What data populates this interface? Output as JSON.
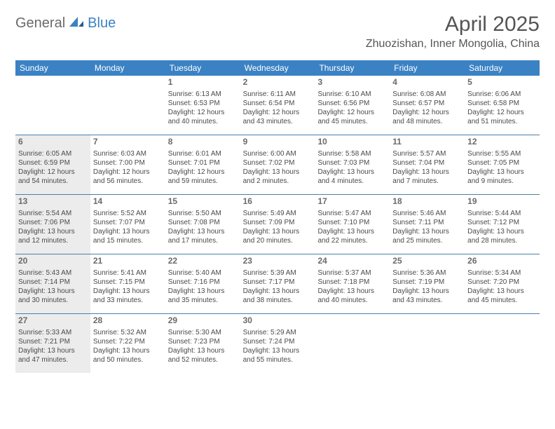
{
  "logo": {
    "general": "General",
    "blue": "Blue"
  },
  "header": {
    "month_title": "April 2025",
    "location": "Zhuozishan, Inner Mongolia, China"
  },
  "colors": {
    "header_bg": "#3b82c4",
    "row_divider": "#4a7fa8",
    "shaded_bg": "#ececec",
    "text": "#4a4a4a",
    "title_text": "#555555",
    "logo_gray": "#6a6a6a",
    "logo_blue": "#3b82c4"
  },
  "weekdays": [
    "Sunday",
    "Monday",
    "Tuesday",
    "Wednesday",
    "Thursday",
    "Friday",
    "Saturday"
  ],
  "weeks": [
    [
      {
        "blank": true,
        "shaded": false
      },
      {
        "blank": true,
        "shaded": false
      },
      {
        "day": "1",
        "shaded": false,
        "sunrise": "Sunrise: 6:13 AM",
        "sunset": "Sunset: 6:53 PM",
        "daylight1": "Daylight: 12 hours",
        "daylight2": "and 40 minutes."
      },
      {
        "day": "2",
        "shaded": false,
        "sunrise": "Sunrise: 6:11 AM",
        "sunset": "Sunset: 6:54 PM",
        "daylight1": "Daylight: 12 hours",
        "daylight2": "and 43 minutes."
      },
      {
        "day": "3",
        "shaded": false,
        "sunrise": "Sunrise: 6:10 AM",
        "sunset": "Sunset: 6:56 PM",
        "daylight1": "Daylight: 12 hours",
        "daylight2": "and 45 minutes."
      },
      {
        "day": "4",
        "shaded": false,
        "sunrise": "Sunrise: 6:08 AM",
        "sunset": "Sunset: 6:57 PM",
        "daylight1": "Daylight: 12 hours",
        "daylight2": "and 48 minutes."
      },
      {
        "day": "5",
        "shaded": false,
        "sunrise": "Sunrise: 6:06 AM",
        "sunset": "Sunset: 6:58 PM",
        "daylight1": "Daylight: 12 hours",
        "daylight2": "and 51 minutes."
      }
    ],
    [
      {
        "day": "6",
        "shaded": true,
        "sunrise": "Sunrise: 6:05 AM",
        "sunset": "Sunset: 6:59 PM",
        "daylight1": "Daylight: 12 hours",
        "daylight2": "and 54 minutes."
      },
      {
        "day": "7",
        "shaded": false,
        "sunrise": "Sunrise: 6:03 AM",
        "sunset": "Sunset: 7:00 PM",
        "daylight1": "Daylight: 12 hours",
        "daylight2": "and 56 minutes."
      },
      {
        "day": "8",
        "shaded": false,
        "sunrise": "Sunrise: 6:01 AM",
        "sunset": "Sunset: 7:01 PM",
        "daylight1": "Daylight: 12 hours",
        "daylight2": "and 59 minutes."
      },
      {
        "day": "9",
        "shaded": false,
        "sunrise": "Sunrise: 6:00 AM",
        "sunset": "Sunset: 7:02 PM",
        "daylight1": "Daylight: 13 hours",
        "daylight2": "and 2 minutes."
      },
      {
        "day": "10",
        "shaded": false,
        "sunrise": "Sunrise: 5:58 AM",
        "sunset": "Sunset: 7:03 PM",
        "daylight1": "Daylight: 13 hours",
        "daylight2": "and 4 minutes."
      },
      {
        "day": "11",
        "shaded": false,
        "sunrise": "Sunrise: 5:57 AM",
        "sunset": "Sunset: 7:04 PM",
        "daylight1": "Daylight: 13 hours",
        "daylight2": "and 7 minutes."
      },
      {
        "day": "12",
        "shaded": false,
        "sunrise": "Sunrise: 5:55 AM",
        "sunset": "Sunset: 7:05 PM",
        "daylight1": "Daylight: 13 hours",
        "daylight2": "and 9 minutes."
      }
    ],
    [
      {
        "day": "13",
        "shaded": true,
        "sunrise": "Sunrise: 5:54 AM",
        "sunset": "Sunset: 7:06 PM",
        "daylight1": "Daylight: 13 hours",
        "daylight2": "and 12 minutes."
      },
      {
        "day": "14",
        "shaded": false,
        "sunrise": "Sunrise: 5:52 AM",
        "sunset": "Sunset: 7:07 PM",
        "daylight1": "Daylight: 13 hours",
        "daylight2": "and 15 minutes."
      },
      {
        "day": "15",
        "shaded": false,
        "sunrise": "Sunrise: 5:50 AM",
        "sunset": "Sunset: 7:08 PM",
        "daylight1": "Daylight: 13 hours",
        "daylight2": "and 17 minutes."
      },
      {
        "day": "16",
        "shaded": false,
        "sunrise": "Sunrise: 5:49 AM",
        "sunset": "Sunset: 7:09 PM",
        "daylight1": "Daylight: 13 hours",
        "daylight2": "and 20 minutes."
      },
      {
        "day": "17",
        "shaded": false,
        "sunrise": "Sunrise: 5:47 AM",
        "sunset": "Sunset: 7:10 PM",
        "daylight1": "Daylight: 13 hours",
        "daylight2": "and 22 minutes."
      },
      {
        "day": "18",
        "shaded": false,
        "sunrise": "Sunrise: 5:46 AM",
        "sunset": "Sunset: 7:11 PM",
        "daylight1": "Daylight: 13 hours",
        "daylight2": "and 25 minutes."
      },
      {
        "day": "19",
        "shaded": false,
        "sunrise": "Sunrise: 5:44 AM",
        "sunset": "Sunset: 7:12 PM",
        "daylight1": "Daylight: 13 hours",
        "daylight2": "and 28 minutes."
      }
    ],
    [
      {
        "day": "20",
        "shaded": true,
        "sunrise": "Sunrise: 5:43 AM",
        "sunset": "Sunset: 7:14 PM",
        "daylight1": "Daylight: 13 hours",
        "daylight2": "and 30 minutes."
      },
      {
        "day": "21",
        "shaded": false,
        "sunrise": "Sunrise: 5:41 AM",
        "sunset": "Sunset: 7:15 PM",
        "daylight1": "Daylight: 13 hours",
        "daylight2": "and 33 minutes."
      },
      {
        "day": "22",
        "shaded": false,
        "sunrise": "Sunrise: 5:40 AM",
        "sunset": "Sunset: 7:16 PM",
        "daylight1": "Daylight: 13 hours",
        "daylight2": "and 35 minutes."
      },
      {
        "day": "23",
        "shaded": false,
        "sunrise": "Sunrise: 5:39 AM",
        "sunset": "Sunset: 7:17 PM",
        "daylight1": "Daylight: 13 hours",
        "daylight2": "and 38 minutes."
      },
      {
        "day": "24",
        "shaded": false,
        "sunrise": "Sunrise: 5:37 AM",
        "sunset": "Sunset: 7:18 PM",
        "daylight1": "Daylight: 13 hours",
        "daylight2": "and 40 minutes."
      },
      {
        "day": "25",
        "shaded": false,
        "sunrise": "Sunrise: 5:36 AM",
        "sunset": "Sunset: 7:19 PM",
        "daylight1": "Daylight: 13 hours",
        "daylight2": "and 43 minutes."
      },
      {
        "day": "26",
        "shaded": false,
        "sunrise": "Sunrise: 5:34 AM",
        "sunset": "Sunset: 7:20 PM",
        "daylight1": "Daylight: 13 hours",
        "daylight2": "and 45 minutes."
      }
    ],
    [
      {
        "day": "27",
        "shaded": true,
        "sunrise": "Sunrise: 5:33 AM",
        "sunset": "Sunset: 7:21 PM",
        "daylight1": "Daylight: 13 hours",
        "daylight2": "and 47 minutes."
      },
      {
        "day": "28",
        "shaded": false,
        "sunrise": "Sunrise: 5:32 AM",
        "sunset": "Sunset: 7:22 PM",
        "daylight1": "Daylight: 13 hours",
        "daylight2": "and 50 minutes."
      },
      {
        "day": "29",
        "shaded": false,
        "sunrise": "Sunrise: 5:30 AM",
        "sunset": "Sunset: 7:23 PM",
        "daylight1": "Daylight: 13 hours",
        "daylight2": "and 52 minutes."
      },
      {
        "day": "30",
        "shaded": false,
        "sunrise": "Sunrise: 5:29 AM",
        "sunset": "Sunset: 7:24 PM",
        "daylight1": "Daylight: 13 hours",
        "daylight2": "and 55 minutes."
      },
      {
        "blank": true,
        "shaded": false
      },
      {
        "blank": true,
        "shaded": false
      },
      {
        "blank": true,
        "shaded": false
      }
    ]
  ]
}
